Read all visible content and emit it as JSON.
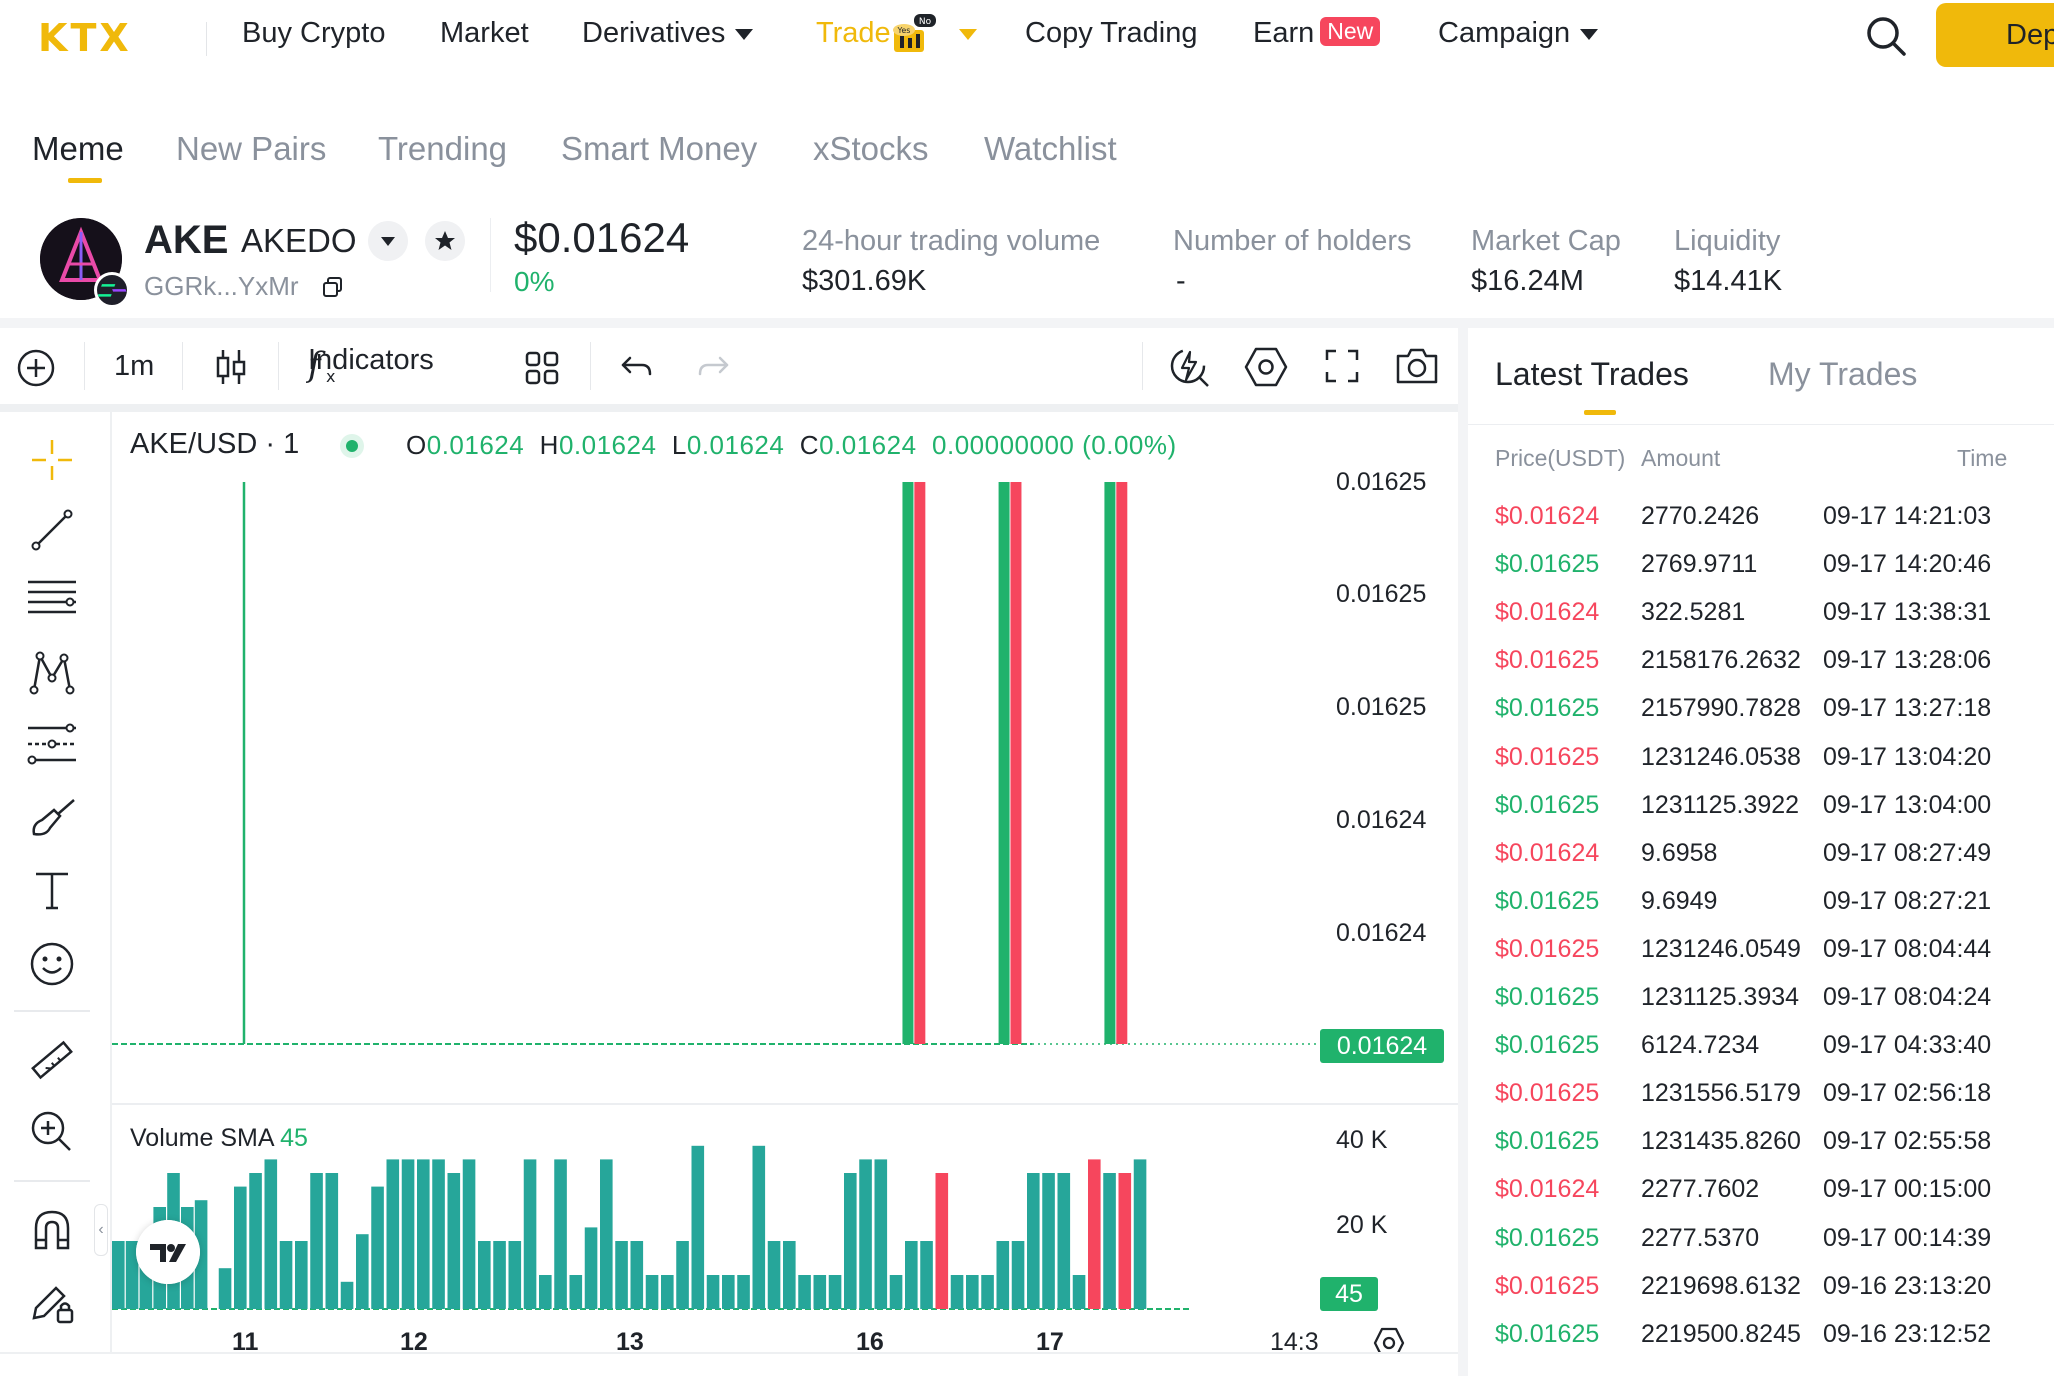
{
  "nav": {
    "logo": "KTX",
    "items": [
      {
        "label": "Buy Crypto",
        "has_caret": false
      },
      {
        "label": "Market",
        "has_caret": false
      },
      {
        "label": "Derivatives",
        "has_caret": true
      },
      {
        "label": "Trade",
        "has_caret": true,
        "active": true
      },
      {
        "label": "Copy Trading",
        "has_caret": false
      },
      {
        "label": "Earn",
        "has_caret": false,
        "badge": "New"
      },
      {
        "label": "Campaign",
        "has_caret": true
      }
    ],
    "trade_gift_badge_top": "No",
    "trade_gift_badge_mid": "Yes",
    "deposit_label": "Deposit"
  },
  "subtabs": [
    "Meme",
    "New Pairs",
    "Trending",
    "Smart Money",
    "xStocks",
    "Watchlist"
  ],
  "token": {
    "symbol": "AKE",
    "name": "AKEDO",
    "address": "GGRk...YxMr",
    "price": "$0.01624",
    "change": "0%",
    "stats": [
      {
        "label": "24-hour trading volume",
        "value": "$301.69K"
      },
      {
        "label": "Number of holders",
        "value": "-"
      },
      {
        "label": "Market Cap",
        "value": "$16.24M"
      },
      {
        "label": "Liquidity",
        "value": "$14.41K"
      }
    ]
  },
  "toolbar": {
    "interval": "1m",
    "indicators_label": "Indicators"
  },
  "chart": {
    "pair": "AKE/USD · 1",
    "ohlc": {
      "o_label": "O",
      "o": "0.01624",
      "h_label": "H",
      "h": "0.01624",
      "l_label": "L",
      "l": "0.01624",
      "c_label": "C",
      "c": "0.01624",
      "change": "0.00000000 (0.00%)"
    },
    "volume_label": "Volume",
    "sma_label": "SMA",
    "sma_value": "45",
    "current_price_tag": "0.01624",
    "volume_tag": "45",
    "price_axis": [
      "0.01625",
      "0.01625",
      "0.01625",
      "0.01624",
      "0.01624"
    ],
    "volume_axis": [
      "40 K",
      "20 K"
    ],
    "time_axis": [
      "11",
      "12",
      "13",
      "16",
      "17",
      "14:3"
    ],
    "colors": {
      "up": "#20b26c",
      "down": "#f6465d",
      "accent": "#f0b90b"
    }
  },
  "chart_data": {
    "type": "bar",
    "title": "AKE/USD · 1",
    "price_candles_x_fraction": [
      {
        "pos": 0.121,
        "dir": "up"
      },
      {
        "pos": 0.737,
        "dir": "up"
      },
      {
        "pos": 0.748,
        "dir": "down"
      },
      {
        "pos": 0.826,
        "dir": "up"
      },
      {
        "pos": 0.837,
        "dir": "down"
      },
      {
        "pos": 0.924,
        "dir": "up"
      },
      {
        "pos": 0.935,
        "dir": "down"
      }
    ],
    "volume_values": [
      20,
      20,
      16,
      30,
      40,
      30,
      32,
      12,
      36,
      40,
      44,
      20,
      20,
      40,
      40,
      8,
      22,
      36,
      44,
      44,
      44,
      44,
      40,
      44,
      20,
      20,
      20,
      44,
      10,
      44,
      10,
      24,
      44,
      20,
      20,
      10,
      10,
      20,
      48,
      10,
      10,
      10,
      48,
      20,
      20,
      10,
      10,
      10,
      40,
      44,
      44,
      10,
      20,
      20,
      40,
      10,
      10,
      10,
      20,
      20,
      40,
      40,
      40,
      10,
      44,
      40,
      40,
      44
    ],
    "volume_dirs_down": [
      54,
      64,
      66
    ],
    "volume_ylim": [
      0,
      50000
    ],
    "volume_ticks": [
      40000,
      20000
    ]
  },
  "trades": {
    "tabs": [
      "Latest Trades",
      "My Trades"
    ],
    "headers": {
      "price": "Price(USDT)",
      "amount": "Amount",
      "time": "Time"
    },
    "rows": [
      {
        "price": "$0.01624",
        "side": "sell",
        "amount": "2770.2426",
        "time": "09-17 14:21:03"
      },
      {
        "price": "$0.01625",
        "side": "buy",
        "amount": "2769.9711",
        "time": "09-17 14:20:46"
      },
      {
        "price": "$0.01624",
        "side": "sell",
        "amount": "322.5281",
        "time": "09-17 13:38:31"
      },
      {
        "price": "$0.01625",
        "side": "sell",
        "amount": "2158176.2632",
        "time": "09-17 13:28:06"
      },
      {
        "price": "$0.01625",
        "side": "buy",
        "amount": "2157990.7828",
        "time": "09-17 13:27:18"
      },
      {
        "price": "$0.01625",
        "side": "sell",
        "amount": "1231246.0538",
        "time": "09-17 13:04:20"
      },
      {
        "price": "$0.01625",
        "side": "buy",
        "amount": "1231125.3922",
        "time": "09-17 13:04:00"
      },
      {
        "price": "$0.01624",
        "side": "sell",
        "amount": "9.6958",
        "time": "09-17 08:27:49"
      },
      {
        "price": "$0.01625",
        "side": "buy",
        "amount": "9.6949",
        "time": "09-17 08:27:21"
      },
      {
        "price": "$0.01625",
        "side": "sell",
        "amount": "1231246.0549",
        "time": "09-17 08:04:44"
      },
      {
        "price": "$0.01625",
        "side": "buy",
        "amount": "1231125.3934",
        "time": "09-17 08:04:24"
      },
      {
        "price": "$0.01625",
        "side": "buy",
        "amount": "6124.7234",
        "time": "09-17 04:33:40"
      },
      {
        "price": "$0.01625",
        "side": "sell",
        "amount": "1231556.5179",
        "time": "09-17 02:56:18"
      },
      {
        "price": "$0.01625",
        "side": "buy",
        "amount": "1231435.8260",
        "time": "09-17 02:55:58"
      },
      {
        "price": "$0.01624",
        "side": "sell",
        "amount": "2277.7602",
        "time": "09-17 00:15:00"
      },
      {
        "price": "$0.01625",
        "side": "buy",
        "amount": "2277.5370",
        "time": "09-17 00:14:39"
      },
      {
        "price": "$0.01625",
        "side": "sell",
        "amount": "2219698.6132",
        "time": "09-16 23:13:20"
      },
      {
        "price": "$0.01625",
        "side": "buy",
        "amount": "2219500.8245",
        "time": "09-16 23:12:52"
      }
    ]
  }
}
